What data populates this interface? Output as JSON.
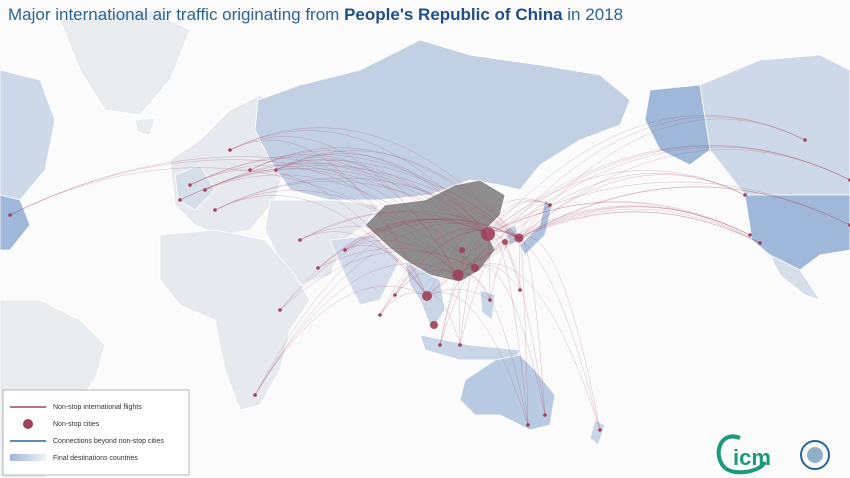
{
  "header": {
    "title": {
      "prefix": "Major international air traffic originating from",
      "country": "People's Republic of China",
      "suffix": "in 2018"
    }
  },
  "legend": {
    "items": [
      "Non-stop international flights",
      "Non-stop cities",
      "Connections beyond non-stop cities",
      "Final destinations countries"
    ]
  },
  "logo": {
    "text": "icm"
  }
}
